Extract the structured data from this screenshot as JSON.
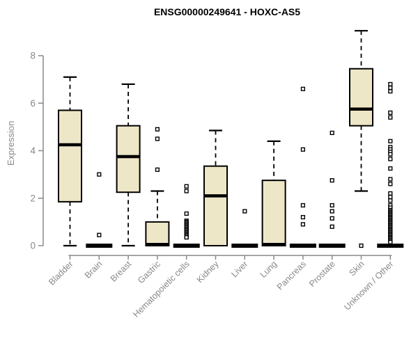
{
  "chart_data": {
    "type": "boxplot",
    "title": "ENSG00000249641 - HOXC-AS5",
    "xlabel": "",
    "ylabel": "Expression",
    "ylim": [
      0,
      8
    ],
    "yticks": [
      0,
      2,
      4,
      6,
      8
    ],
    "grid": false,
    "legend": "none",
    "categories": [
      "Bladder",
      "Brain",
      "Breast",
      "Gastric",
      "Hematopoietic cells",
      "Kidney",
      "Liver",
      "Lung",
      "Pancreas",
      "Prostate",
      "Skin",
      "Unknown / Other"
    ],
    "series": [
      {
        "name": "Bladder",
        "low": 0,
        "q1": 1.85,
        "median": 4.25,
        "q3": 5.7,
        "high": 7.1,
        "outliers": []
      },
      {
        "name": "Brain",
        "low": 0,
        "q1": 0,
        "median": 0,
        "q3": 0,
        "high": 0,
        "outliers": [
          3.0,
          0.45
        ]
      },
      {
        "name": "Breast",
        "low": 0,
        "q1": 2.25,
        "median": 3.75,
        "q3": 5.05,
        "high": 6.8,
        "outliers": []
      },
      {
        "name": "Gastric",
        "low": 0,
        "q1": 0,
        "median": 0.05,
        "q3": 1.0,
        "high": 2.3,
        "outliers": [
          4.9,
          4.5,
          3.2
        ]
      },
      {
        "name": "Hematopoietic cells",
        "low": 0,
        "q1": 0,
        "median": 0,
        "q3": 0,
        "high": 0,
        "outliers": [
          2.5,
          2.3,
          1.35,
          1.05,
          1.0,
          0.95,
          0.9,
          0.85,
          0.8,
          0.75,
          0.7,
          0.65,
          0.6,
          0.55,
          0.5,
          0.45,
          0.4,
          0.35
        ]
      },
      {
        "name": "Kidney",
        "low": 0,
        "q1": 0,
        "median": 2.1,
        "q3": 3.35,
        "high": 4.85,
        "outliers": []
      },
      {
        "name": "Liver",
        "low": 0,
        "q1": 0,
        "median": 0,
        "q3": 0,
        "high": 0,
        "outliers": [
          1.45
        ]
      },
      {
        "name": "Lung",
        "low": 0,
        "q1": 0,
        "median": 0.05,
        "q3": 2.75,
        "high": 4.4,
        "outliers": []
      },
      {
        "name": "Pancreas",
        "low": 0,
        "q1": 0,
        "median": 0,
        "q3": 0,
        "high": 0,
        "outliers": [
          6.6,
          4.05,
          1.7,
          1.2,
          0.9
        ]
      },
      {
        "name": "Prostate",
        "low": 0,
        "q1": 0,
        "median": 0,
        "q3": 0,
        "high": 0,
        "outliers": [
          4.75,
          2.75,
          1.7,
          1.45,
          1.15,
          0.8
        ]
      },
      {
        "name": "Skin",
        "low": 2.3,
        "q1": 5.05,
        "median": 5.75,
        "q3": 7.45,
        "high": 9.05,
        "outliers": [
          0
        ]
      },
      {
        "name": "Unknown / Other",
        "low": 0,
        "q1": 0,
        "median": 0,
        "q3": 0,
        "high": 0,
        "outliers": [
          6.8,
          6.65,
          6.5,
          5.6,
          5.4,
          4.4,
          4.15,
          4.05,
          3.95,
          3.85,
          3.65,
          3.25,
          2.8,
          2.6,
          2.2,
          2.05,
          1.9,
          1.7,
          1.6,
          1.5,
          1.45,
          1.4,
          1.35,
          1.3,
          1.25,
          1.2,
          1.15,
          1.1,
          1.05,
          1.0,
          0.95,
          0.9,
          0.85,
          0.8,
          0.75,
          0.7,
          0.65,
          0.6,
          0.55,
          0.5,
          0.45,
          0.4,
          0.35,
          0.3,
          0.25,
          0.2,
          0.15
        ]
      }
    ],
    "colors": {
      "box_fill": "#ede7c8",
      "box_stroke": "#000000",
      "median": "#000000",
      "whisker": "#000000",
      "axis": "#888888",
      "tick_text": "#888888",
      "title_text": "#000000",
      "background": "#ffffff"
    }
  }
}
